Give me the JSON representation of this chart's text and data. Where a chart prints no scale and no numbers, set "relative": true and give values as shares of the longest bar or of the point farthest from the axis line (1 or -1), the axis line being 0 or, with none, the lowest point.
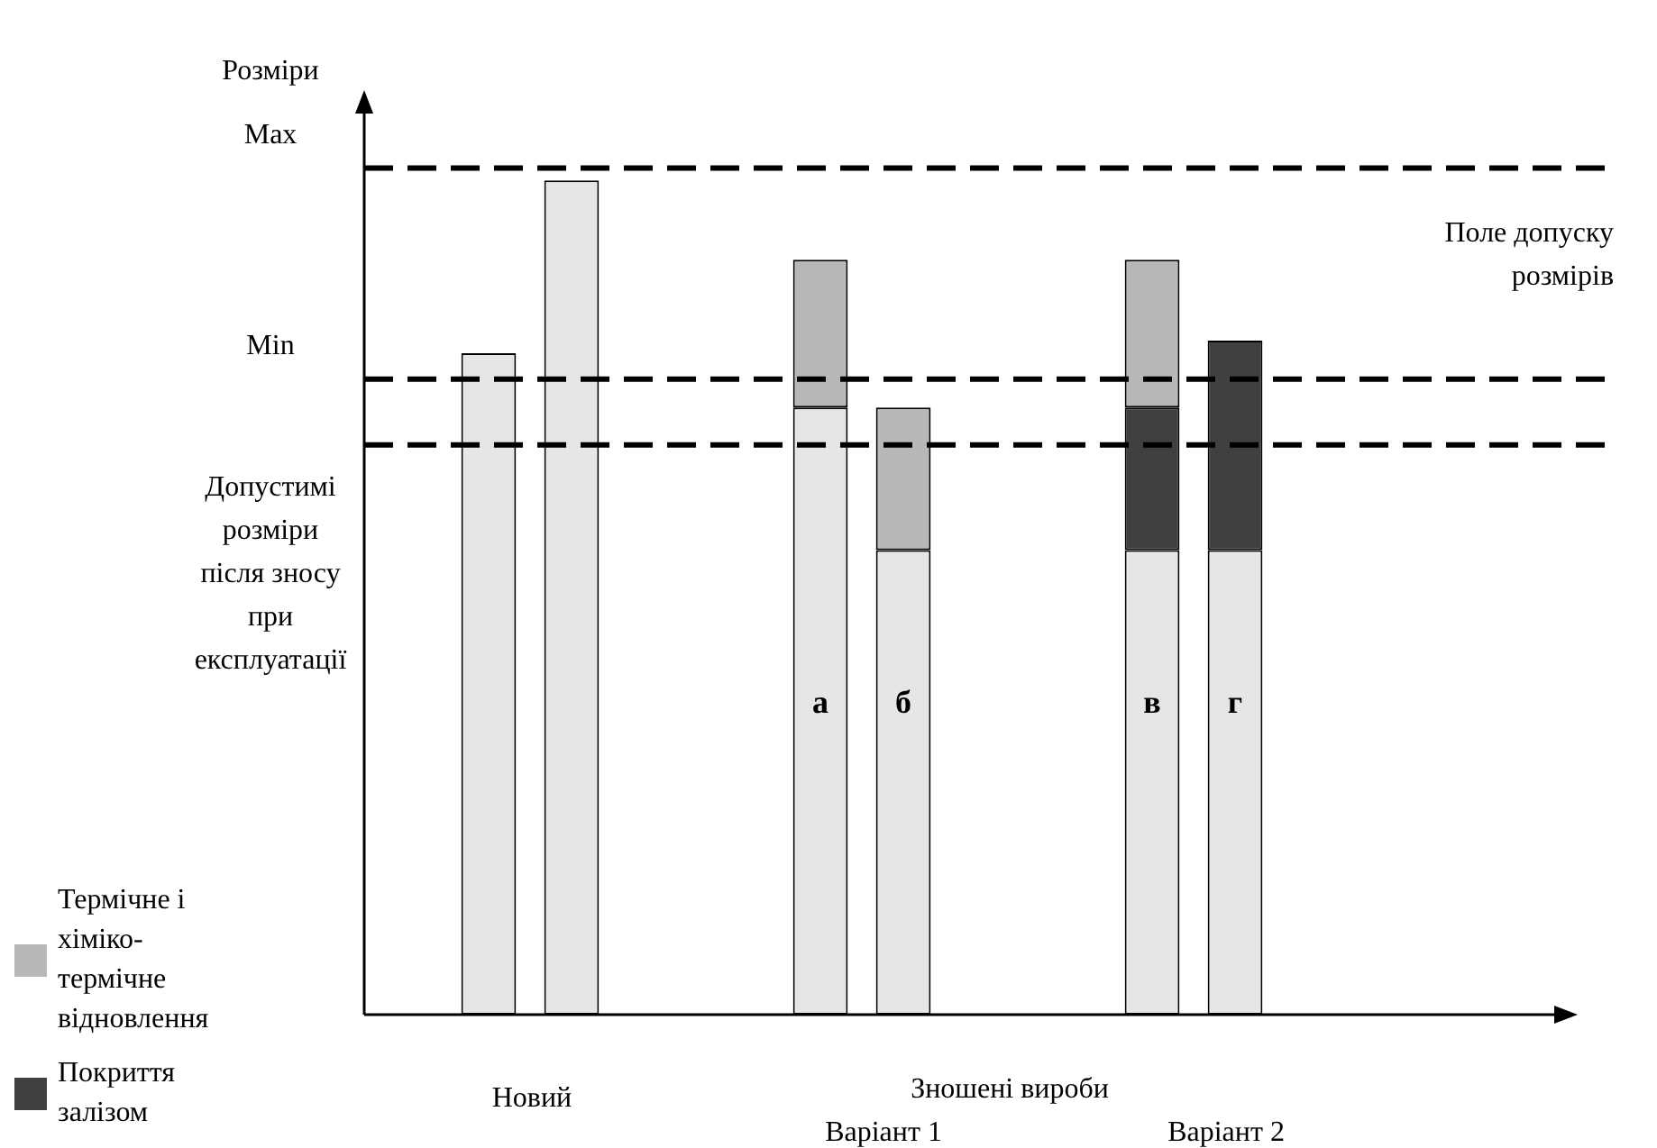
{
  "chart_data": {
    "type": "bar",
    "relative": true,
    "stacked": true,
    "ylabel": "Розміри",
    "legend": "bottom left",
    "categories": [
      null,
      null,
      null,
      null,
      null,
      "а",
      "б",
      null,
      null,
      "в",
      "г",
      null,
      null,
      null
    ],
    "series": [
      {
        "color": "#e6e6e6",
        "values": [
          null,
          0.793,
          1.0,
          null,
          null,
          0.728,
          0.557,
          null,
          null,
          0.557,
          0.557,
          null,
          null,
          null
        ]
      },
      {
        "name": "Покриття залізом",
        "color": "#404040",
        "values": [
          null,
          null,
          null,
          null,
          null,
          null,
          null,
          null,
          null,
          0.171,
          0.251,
          null,
          null,
          null
        ]
      },
      {
        "name": "Термічне і хіміко-термічне відновлення",
        "color": "#b8b8b8",
        "values": [
          null,
          null,
          null,
          null,
          null,
          0.177,
          0.171,
          null,
          null,
          0.177,
          null,
          null,
          null,
          null
        ]
      }
    ],
    "ref_lines": [
      {
        "axis": "y",
        "value": 1.015,
        "label": "Max",
        "line_style": "dashed"
      },
      {
        "axis": "y",
        "value": 0.762,
        "label": "Min",
        "line_style": "dashed"
      },
      {
        "axis": "y",
        "value": 0.683,
        "label": "Допустимі розміри після зносу при експлуатації",
        "line_style": "dashed"
      }
    ],
    "annotations": [
      "Поле допуску розмірів",
      "Новий",
      "Зношені вироби",
      "Варіант 1",
      "Варіант 2"
    ]
  }
}
